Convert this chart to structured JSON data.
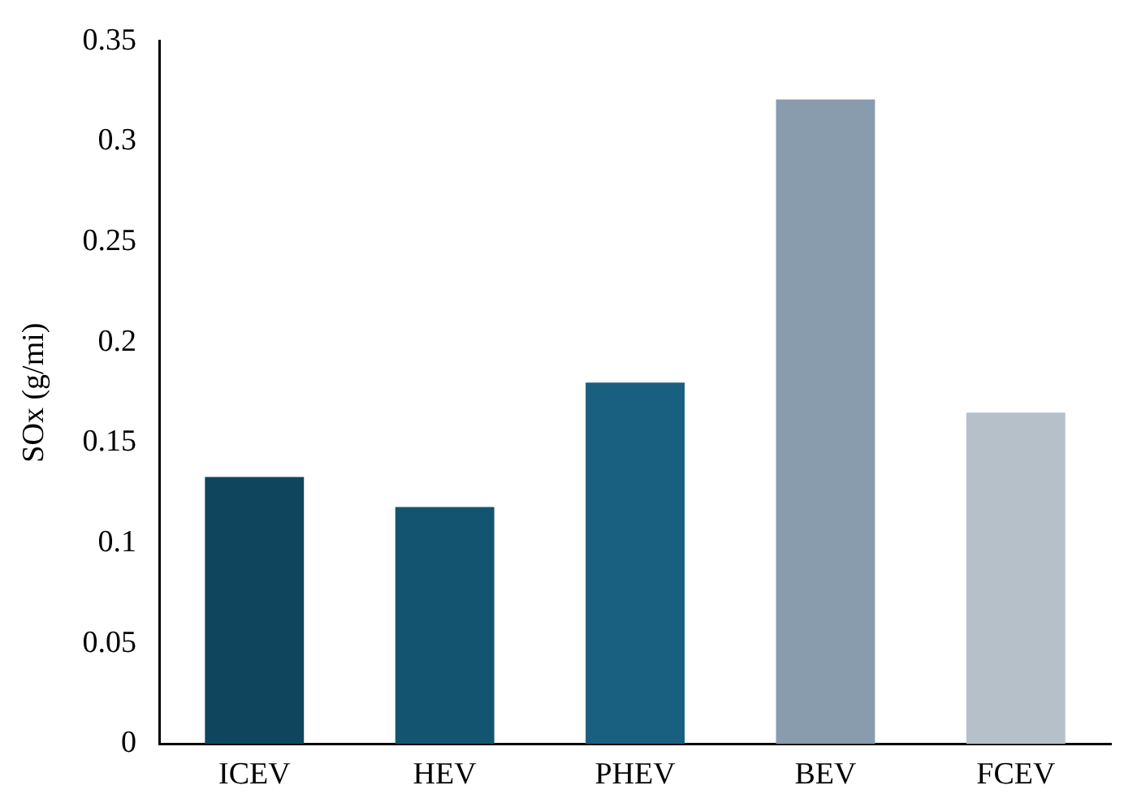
{
  "chart_data": {
    "type": "bar",
    "ylabel": "SOx (g/mi)",
    "categories": [
      "ICEV",
      "HEV",
      "PHEV",
      "BEV",
      "FCEV"
    ],
    "values": [
      0.133,
      0.118,
      0.18,
      0.321,
      0.165
    ],
    "colors": [
      "#10455e",
      "#135570",
      "#185f80",
      "#889cad",
      "#b5c0c9"
    ],
    "ylim": [
      0,
      0.35
    ],
    "yticks": [
      0,
      0.05,
      0.1,
      0.15,
      0.2,
      0.25,
      0.3,
      0.35
    ],
    "grid": false,
    "legend": false
  }
}
